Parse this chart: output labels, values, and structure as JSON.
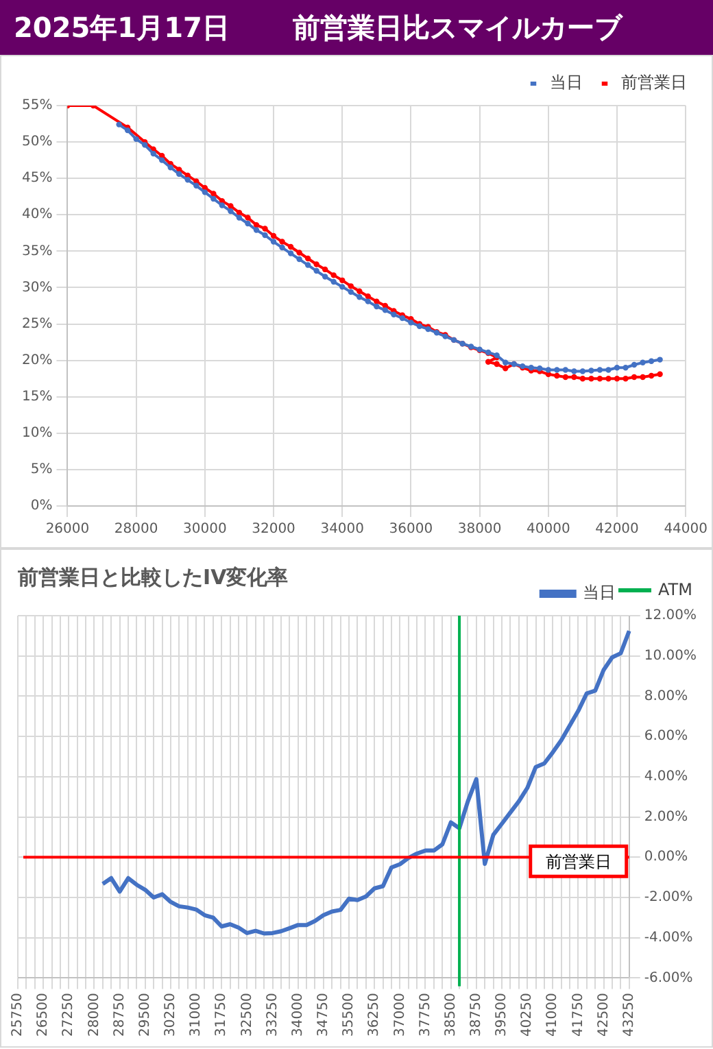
{
  "chart_data": [
    {
      "type": "line",
      "title": "2025年1月17日",
      "subtitle": "前営業日比スマイルカーブ",
      "marker": "circle",
      "grid": true,
      "legend": "top right",
      "xlim": [
        26000,
        44000
      ],
      "xticks": [
        26000,
        28000,
        30000,
        32000,
        34000,
        36000,
        38000,
        40000,
        42000,
        44000
      ],
      "ylim": [
        0,
        55
      ],
      "yticks": [
        {
          "value": 0,
          "label": "0%"
        },
        {
          "value": 5,
          "label": "5%"
        },
        {
          "value": 10,
          "label": "10%"
        },
        {
          "value": 15,
          "label": "15%"
        },
        {
          "value": 20,
          "label": "20%"
        },
        {
          "value": 25,
          "label": "25%"
        },
        {
          "value": 30,
          "label": "30%"
        },
        {
          "value": 35,
          "label": "35%"
        },
        {
          "value": 40,
          "label": "40%"
        },
        {
          "value": 45,
          "label": "45%"
        },
        {
          "value": 50,
          "label": "50%"
        },
        {
          "value": 55,
          "label": "55%"
        }
      ],
      "series": [
        {
          "name": "当日",
          "color": "#4472c4",
          "x": [
            27500,
            27750,
            28000,
            28250,
            28500,
            28750,
            29000,
            29250,
            29500,
            29750,
            30000,
            30250,
            30500,
            30750,
            31000,
            31250,
            31500,
            31750,
            32000,
            32250,
            32500,
            32750,
            33000,
            33250,
            33500,
            33750,
            34000,
            34250,
            34500,
            34750,
            35000,
            35250,
            35500,
            35750,
            36000,
            36250,
            36500,
            36750,
            37000,
            37250,
            37500,
            37750,
            38000,
            38250,
            38500,
            38750,
            39000,
            39250,
            39500,
            39750,
            40000,
            40250,
            40500,
            40750,
            41000,
            41250,
            41500,
            41750,
            42000,
            42250,
            42500,
            42750,
            43000,
            43250
          ],
          "values": [
            52.4,
            51.6,
            50.4,
            49.6,
            48.4,
            47.5,
            46.5,
            45.6,
            44.8,
            44.0,
            43.1,
            42.2,
            41.3,
            40.5,
            39.6,
            38.8,
            37.9,
            37.2,
            36.3,
            35.5,
            34.7,
            33.9,
            33.1,
            32.3,
            31.5,
            30.8,
            30.1,
            29.4,
            28.7,
            28.1,
            27.4,
            26.9,
            26.3,
            25.8,
            25.2,
            24.7,
            24.3,
            23.8,
            23.3,
            22.8,
            22.3,
            21.9,
            21.5,
            21.1,
            20.7,
            19.7,
            19.5,
            19.2,
            19.0,
            18.9,
            18.7,
            18.7,
            18.7,
            18.5,
            18.5,
            18.6,
            18.7,
            18.7,
            19.0,
            19.0,
            19.4,
            19.7,
            19.9,
            20.1
          ]
        },
        {
          "name": "前営業日",
          "color": "#ff0000",
          "x": [
            26000,
            26750,
            27750,
            28250,
            28500,
            28750,
            29000,
            29250,
            29500,
            29750,
            30000,
            30250,
            30500,
            30750,
            31000,
            31250,
            31500,
            31750,
            32000,
            32250,
            32500,
            32750,
            33000,
            33250,
            33500,
            33750,
            34000,
            34250,
            34500,
            34750,
            35000,
            35250,
            35500,
            35750,
            36000,
            36250,
            36500,
            36750,
            37000,
            37250,
            37500,
            37750,
            38000,
            38250,
            38500,
            38250,
            38500,
            38750,
            39000,
            39250,
            39500,
            39750,
            40000,
            40250,
            40500,
            40750,
            41000,
            41250,
            41500,
            41750,
            42000,
            42250,
            42500,
            42750,
            43000,
            43250
          ],
          "values": [
            55.0,
            55.0,
            52.0,
            50.0,
            49.0,
            48.1,
            47.0,
            46.2,
            45.4,
            44.6,
            43.7,
            42.9,
            41.9,
            41.2,
            40.3,
            39.6,
            38.6,
            38.1,
            37.1,
            36.3,
            35.6,
            34.8,
            34.0,
            33.2,
            32.5,
            31.7,
            31.0,
            30.2,
            29.5,
            28.8,
            28.1,
            27.5,
            26.8,
            26.2,
            25.7,
            25.0,
            24.6,
            23.9,
            23.5,
            22.8,
            22.3,
            21.8,
            21.4,
            21.0,
            20.4,
            19.8,
            19.5,
            18.9,
            19.5,
            19.0,
            18.6,
            18.5,
            18.1,
            17.9,
            17.7,
            17.7,
            17.5,
            17.5,
            17.5,
            17.5,
            17.5,
            17.5,
            17.7,
            17.7,
            17.9,
            18.1
          ]
        }
      ]
    },
    {
      "type": "line",
      "title": "前営業日と比較したIV変化率",
      "marker": "none",
      "grid": true,
      "legend": "top right",
      "categories": [
        "25750",
        null,
        null,
        "26500",
        null,
        null,
        "27250",
        null,
        null,
        "28000",
        null,
        null,
        "28750",
        null,
        null,
        "29500",
        null,
        null,
        "30250",
        null,
        null,
        "31000",
        null,
        null,
        "31750",
        null,
        null,
        "32500",
        null,
        null,
        "33250",
        null,
        null,
        "34000",
        null,
        null,
        "34750",
        null,
        null,
        "35500",
        null,
        null,
        "36250",
        null,
        null,
        "37000",
        null,
        null,
        "37750",
        null,
        null,
        "38500",
        null,
        null,
        "38750",
        null,
        null,
        "39500",
        null,
        null,
        "40250",
        null,
        null,
        "41000",
        null,
        null,
        "41750",
        null,
        null,
        "42500",
        null,
        null,
        "43250"
      ],
      "ylim": [
        -6,
        12
      ],
      "yticks": [
        {
          "value": -6,
          "label": "-6.00%"
        },
        {
          "value": -4,
          "label": "-4.00%"
        },
        {
          "value": -2,
          "label": "-2.00%"
        },
        {
          "value": 0,
          "label": "0.00%"
        },
        {
          "value": 2,
          "label": "2.00%"
        },
        {
          "value": 4,
          "label": "4.00%"
        },
        {
          "value": 6,
          "label": "6.00%"
        },
        {
          "value": 8,
          "label": "8.00%"
        },
        {
          "value": 10,
          "label": "10.00%"
        },
        {
          "value": 12,
          "label": "12.00%"
        }
      ],
      "series": [
        {
          "name": "当日",
          "color": "#4472c4",
          "values": [
            null,
            null,
            null,
            null,
            null,
            null,
            null,
            null,
            null,
            null,
            -1.33,
            -1.04,
            -1.71,
            -1.04,
            -1.37,
            -1.62,
            -2.0,
            -1.84,
            -2.22,
            -2.44,
            -2.5,
            -2.6,
            -2.88,
            -3.0,
            -3.44,
            -3.33,
            -3.5,
            -3.77,
            -3.66,
            -3.79,
            -3.77,
            -3.68,
            -3.53,
            -3.37,
            -3.37,
            -3.17,
            -2.88,
            -2.7,
            -2.62,
            -2.06,
            -2.13,
            -1.95,
            -1.55,
            -1.44,
            -0.51,
            -0.35,
            -0.04,
            0.18,
            0.33,
            0.33,
            0.64,
            1.73,
            1.44,
            2.77,
            3.88,
            -0.33,
            1.11,
            1.66,
            2.22,
            2.77,
            3.44,
            4.48,
            4.66,
            5.21,
            5.81,
            6.54,
            7.27,
            8.14,
            8.27,
            9.31,
            9.93,
            10.13,
            11.24
          ]
        }
      ],
      "annotations": [
        "ATM"
      ],
      "ref_lines": [
        {
          "axis": "y",
          "value": 0,
          "label": "前営業日",
          "color": "#ff0000"
        }
      ]
    }
  ]
}
